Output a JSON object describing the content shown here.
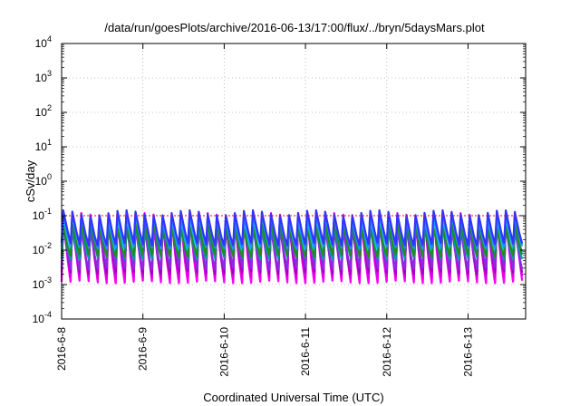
{
  "chart_data": {
    "type": "line",
    "title": "/data/run/goesPlots/archive/2016-06-13/17:00/flux/../bryn/5daysMars.plot",
    "xlabel": "Coordinated Universal Time (UTC)",
    "ylabel": "cSv/day",
    "yscale": "log",
    "ylim": [
      0.0001,
      10000
    ],
    "xlim": [
      "2016-06-08",
      "2016-06-13 17:00"
    ],
    "grid": true,
    "x_ticks": [
      "2016-6-8",
      "2016-6-9",
      "2016-6-10",
      "2016-6-11",
      "2016-6-12",
      "2016-6-13"
    ],
    "y_ticks": [
      {
        "value": 0.0001,
        "base": "10",
        "exp": "-4"
      },
      {
        "value": 0.001,
        "base": "10",
        "exp": "-3"
      },
      {
        "value": 0.01,
        "base": "10",
        "exp": "-2"
      },
      {
        "value": 0.1,
        "base": "10",
        "exp": "-1"
      },
      {
        "value": 1,
        "base": "10",
        "exp": "0"
      },
      {
        "value": 10,
        "base": "10",
        "exp": "1"
      },
      {
        "value": 100,
        "base": "10",
        "exp": "2"
      },
      {
        "value": 1000,
        "base": "10",
        "exp": "3"
      },
      {
        "value": 10000,
        "base": "10",
        "exp": "4"
      }
    ],
    "reference_line": {
      "value": 0.1,
      "color": "#ff0000",
      "style": "dotted"
    },
    "oscillation": {
      "cycles_per_day": 9
    },
    "series": [
      {
        "color": "#ff00ff",
        "peak": 0.1,
        "trough": 0.0012
      },
      {
        "color": "#e000e0",
        "peak": 0.08,
        "trough": 0.0016
      },
      {
        "color": "#a000c0",
        "peak": 0.06,
        "trough": 0.0022
      },
      {
        "color": "#8a2be2",
        "peak": 0.05,
        "trough": 0.003
      },
      {
        "color": "#00a0a0",
        "peak": 0.06,
        "trough": 0.006
      },
      {
        "color": "#00e5ee",
        "peak": 0.07,
        "trough": 0.009
      },
      {
        "color": "#228b22",
        "peak": 0.05,
        "trough": 0.007
      },
      {
        "color": "#1e90ff",
        "peak": 0.09,
        "trough": 0.012
      },
      {
        "color": "#3333ff",
        "peak": 0.12,
        "trough": 0.015
      }
    ]
  }
}
